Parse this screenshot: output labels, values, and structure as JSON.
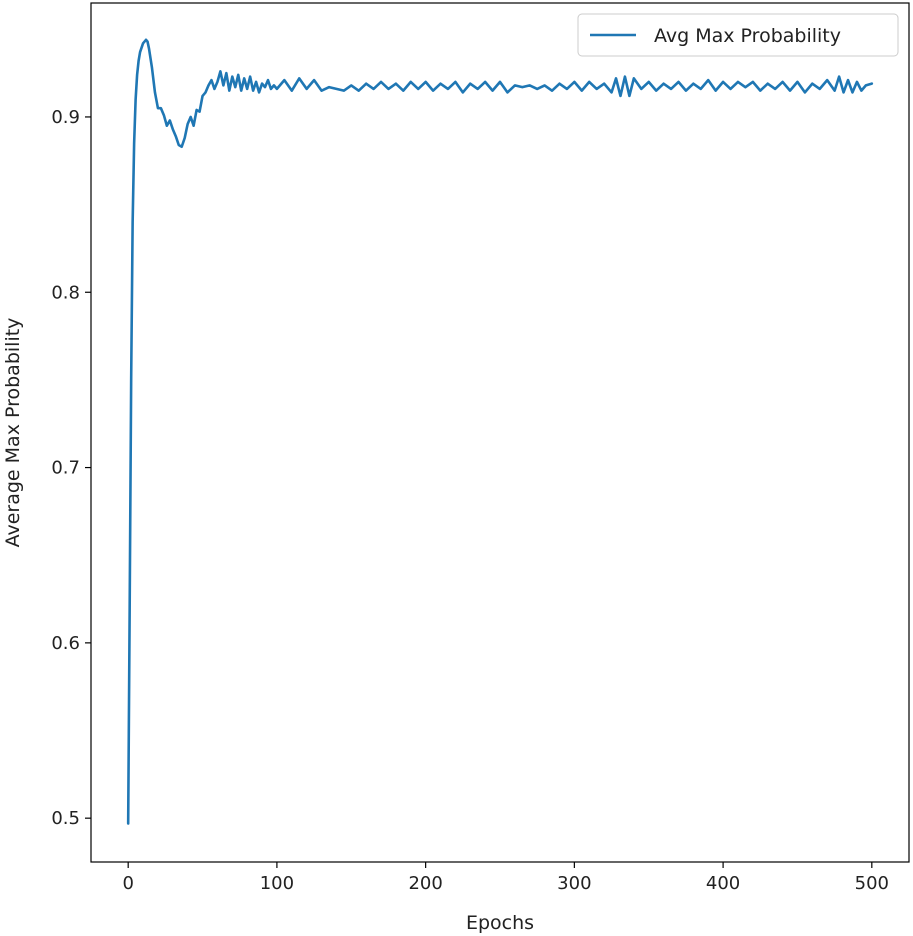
{
  "chart_data": {
    "type": "line",
    "title": "",
    "xlabel": "Epochs",
    "ylabel": "Average Max Probability",
    "xlim": [
      -25,
      525
    ],
    "ylim": [
      0.475,
      0.965
    ],
    "xticks": [
      0,
      100,
      200,
      300,
      400,
      500
    ],
    "xtick_labels": [
      "0",
      "100",
      "200",
      "300",
      "400",
      "500"
    ],
    "yticks": [
      0.5,
      0.6,
      0.7,
      0.8,
      0.9
    ],
    "ytick_labels": [
      "0.5",
      "0.6",
      "0.7",
      "0.8",
      "0.9"
    ],
    "grid": false,
    "legend": {
      "position": "top-right"
    },
    "series": [
      {
        "name": "Avg Max Probability",
        "color": "#1f77b4",
        "x": [
          0,
          1,
          2,
          3,
          4,
          5,
          6,
          7,
          8,
          10,
          12,
          13,
          14,
          16,
          18,
          20,
          22,
          24,
          26,
          28,
          30,
          32,
          34,
          36,
          38,
          40,
          42,
          44,
          46,
          48,
          50,
          52,
          54,
          56,
          58,
          60,
          62,
          64,
          66,
          68,
          70,
          72,
          74,
          76,
          78,
          80,
          82,
          84,
          86,
          88,
          90,
          92,
          94,
          96,
          98,
          100,
          105,
          110,
          115,
          120,
          125,
          130,
          135,
          140,
          145,
          150,
          155,
          160,
          165,
          170,
          175,
          180,
          185,
          190,
          195,
          200,
          205,
          210,
          215,
          220,
          225,
          230,
          235,
          240,
          245,
          250,
          255,
          260,
          265,
          270,
          275,
          280,
          285,
          290,
          295,
          300,
          305,
          310,
          315,
          320,
          325,
          328,
          331,
          334,
          337,
          340,
          345,
          350,
          355,
          360,
          365,
          370,
          375,
          380,
          385,
          390,
          395,
          400,
          405,
          410,
          415,
          420,
          425,
          430,
          435,
          440,
          445,
          450,
          455,
          460,
          465,
          470,
          475,
          478,
          481,
          484,
          487,
          490,
          493,
          496,
          500
        ],
        "y": [
          0.497,
          0.62,
          0.75,
          0.84,
          0.885,
          0.91,
          0.924,
          0.932,
          0.937,
          0.942,
          0.944,
          0.943,
          0.939,
          0.928,
          0.914,
          0.905,
          0.905,
          0.901,
          0.895,
          0.898,
          0.893,
          0.889,
          0.884,
          0.883,
          0.888,
          0.896,
          0.9,
          0.895,
          0.904,
          0.903,
          0.912,
          0.914,
          0.918,
          0.921,
          0.916,
          0.92,
          0.926,
          0.918,
          0.925,
          0.915,
          0.923,
          0.917,
          0.924,
          0.915,
          0.922,
          0.916,
          0.923,
          0.915,
          0.92,
          0.914,
          0.919,
          0.917,
          0.921,
          0.916,
          0.918,
          0.916,
          0.921,
          0.915,
          0.922,
          0.916,
          0.921,
          0.915,
          0.917,
          0.916,
          0.915,
          0.918,
          0.915,
          0.919,
          0.916,
          0.92,
          0.916,
          0.919,
          0.915,
          0.92,
          0.916,
          0.92,
          0.915,
          0.919,
          0.916,
          0.92,
          0.914,
          0.919,
          0.916,
          0.92,
          0.915,
          0.92,
          0.914,
          0.918,
          0.917,
          0.918,
          0.916,
          0.918,
          0.915,
          0.919,
          0.916,
          0.92,
          0.915,
          0.92,
          0.916,
          0.919,
          0.914,
          0.922,
          0.912,
          0.923,
          0.912,
          0.922,
          0.916,
          0.92,
          0.915,
          0.919,
          0.916,
          0.92,
          0.915,
          0.919,
          0.916,
          0.921,
          0.915,
          0.92,
          0.916,
          0.92,
          0.917,
          0.92,
          0.915,
          0.919,
          0.916,
          0.92,
          0.915,
          0.92,
          0.914,
          0.919,
          0.916,
          0.921,
          0.915,
          0.923,
          0.914,
          0.921,
          0.914,
          0.92,
          0.915,
          0.918,
          0.919
        ]
      }
    ]
  }
}
